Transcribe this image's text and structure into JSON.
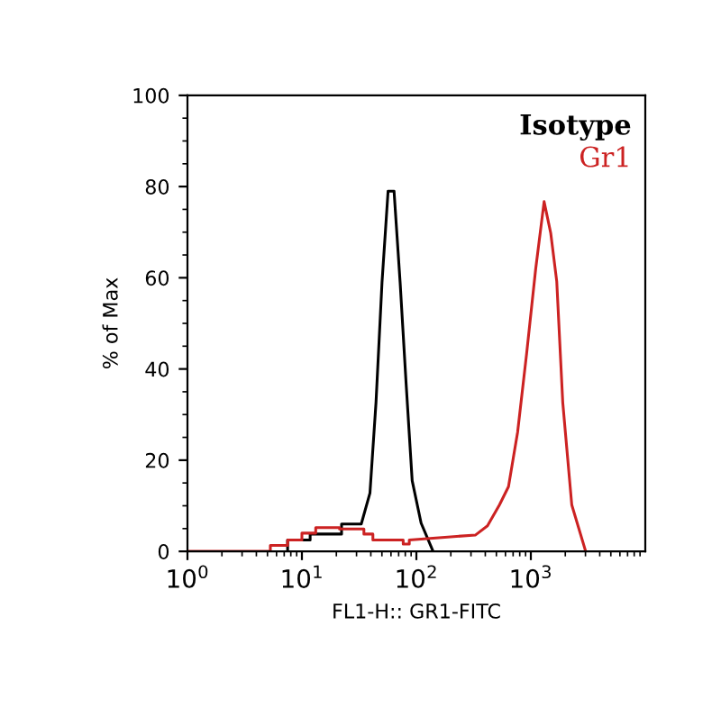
{
  "chart_data": {
    "type": "line",
    "xlabel": "FL1-H:: GR1-FITC",
    "ylabel": "% of Max",
    "log": "x",
    "xlim": [
      1,
      10000
    ],
    "ylim": [
      0,
      100
    ],
    "xticks": [
      {
        "value": 1,
        "label": "10$^{0}$"
      },
      {
        "value": 10,
        "label": "10$^{1}$"
      },
      {
        "value": 100,
        "label": "10$^{2}$"
      },
      {
        "value": 1000,
        "label": "10$^{3}$"
      }
    ],
    "yticks": [
      0,
      20,
      40,
      60,
      80,
      100
    ],
    "grid": false,
    "legend": "top right",
    "marker": "none",
    "line_style": "solid",
    "series": [
      {
        "name": "Isotype",
        "color": "#000000",
        "x": [
          7.5,
          7.5,
          11.8,
          11.8,
          22.2,
          22.2,
          33,
          39.3,
          44.4,
          50.1,
          56.6,
          63.8,
          72.1,
          81.4,
          91.9,
          110,
          140
        ],
        "values": [
          0,
          2.5,
          2.5,
          3.8,
          3.8,
          6,
          6,
          12.8,
          32.7,
          59,
          79,
          79,
          59,
          36.7,
          15.5,
          6.2,
          0
        ]
      },
      {
        "name": "Gr1",
        "color": "#cc2222",
        "x": [
          1,
          5.3,
          5.3,
          7.5,
          7.5,
          10,
          10,
          13.2,
          13.2,
          21.3,
          21.3,
          34.8,
          34.8,
          41.7,
          41.7,
          76.7,
          76.7,
          86.7,
          86.7,
          329,
          418,
          532,
          638,
          766,
          918,
          1102,
          1306,
          1492,
          1684,
          1900,
          2278,
          3013
        ],
        "values": [
          0,
          0,
          1.3,
          1.3,
          2.5,
          2.5,
          4,
          4,
          5.2,
          5.2,
          4.9,
          4.9,
          3.8,
          3.8,
          2.5,
          2.5,
          1.6,
          1.6,
          2.5,
          3.6,
          5.6,
          10.2,
          14.2,
          26.1,
          43.3,
          61.9,
          76.7,
          69.8,
          59.2,
          32.7,
          10.2,
          0
        ]
      }
    ]
  }
}
